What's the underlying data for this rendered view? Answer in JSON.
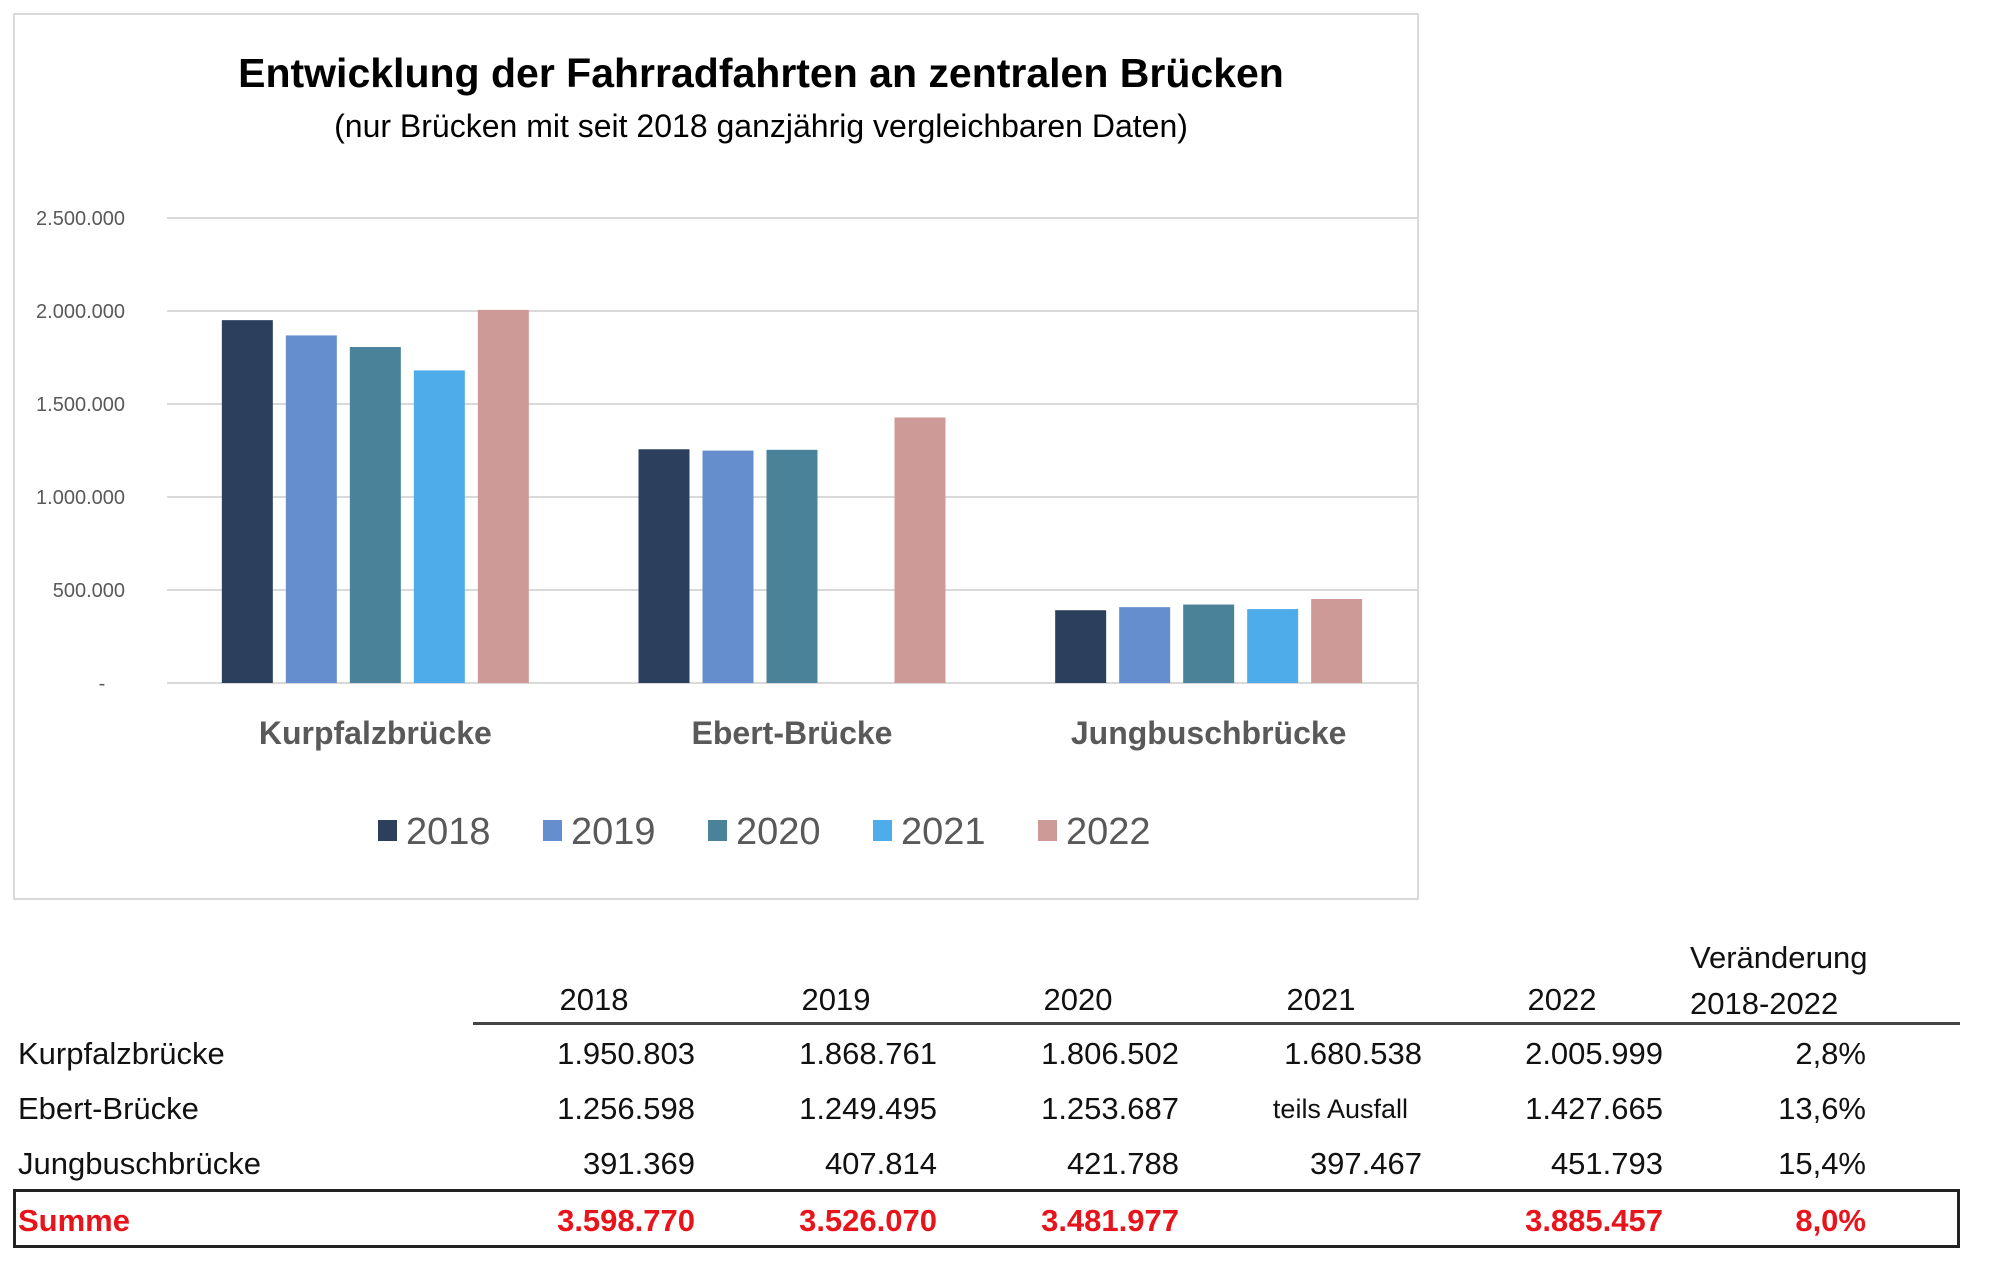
{
  "chart_data": {
    "type": "bar",
    "title": "Entwicklung der Fahrradfahrten an zentralen Brücken",
    "subtitle": "(nur Brücken mit seit 2018 ganzjährig vergleichbaren Daten)",
    "xlabel": "",
    "ylabel": "",
    "ylim": [
      0,
      2500000
    ],
    "yticks": [
      0,
      500000,
      1000000,
      1500000,
      2000000,
      2500000
    ],
    "ytick_labels": [
      "-",
      "500.000",
      "1.000.000",
      "1.500.000",
      "2.000.000",
      "2.500.000"
    ],
    "grid": true,
    "legend_position": "bottom",
    "categories": [
      "Kurpfalzbrücke",
      "Ebert-Brücke",
      "Jungbuschbrücke"
    ],
    "series": [
      {
        "name": "2018",
        "color": "#2c405e",
        "values": [
          1950803,
          1256598,
          391369
        ]
      },
      {
        "name": "2019",
        "color": "#658ecf",
        "values": [
          1868761,
          1249495,
          407814
        ]
      },
      {
        "name": "2020",
        "color": "#4a8399",
        "values": [
          1806502,
          1253687,
          421788
        ]
      },
      {
        "name": "2021",
        "color": "#4facea",
        "values": [
          1680538,
          null,
          397467
        ]
      },
      {
        "name": "2022",
        "color": "#ce9a97",
        "values": [
          2005999,
          1427665,
          451793
        ]
      }
    ]
  },
  "table": {
    "headers": [
      "2018",
      "2019",
      "2020",
      "2021",
      "2022"
    ],
    "change_header_line1": "Veränderung",
    "change_header_line2": "2018-2022",
    "rows": [
      {
        "label": "Kurpfalzbrücke",
        "values": [
          "1.950.803",
          "1.868.761",
          "1.806.502",
          "1.680.538",
          "2.005.999"
        ],
        "change": "2,8%"
      },
      {
        "label": "Ebert-Brücke",
        "values": [
          "1.256.598",
          "1.249.495",
          "1.253.687",
          "teils Ausfall",
          "1.427.665"
        ],
        "change": "13,6%"
      },
      {
        "label": "Jungbuschbrücke",
        "values": [
          "391.369",
          "407.814",
          "421.788",
          "397.467",
          "451.793"
        ],
        "change": "15,4%"
      }
    ],
    "total": {
      "label": "Summe",
      "values": [
        "3.598.770",
        "3.526.070",
        "3.481.977",
        "",
        "3.885.457"
      ],
      "change": "8,0%",
      "color": "#e8141c"
    }
  }
}
